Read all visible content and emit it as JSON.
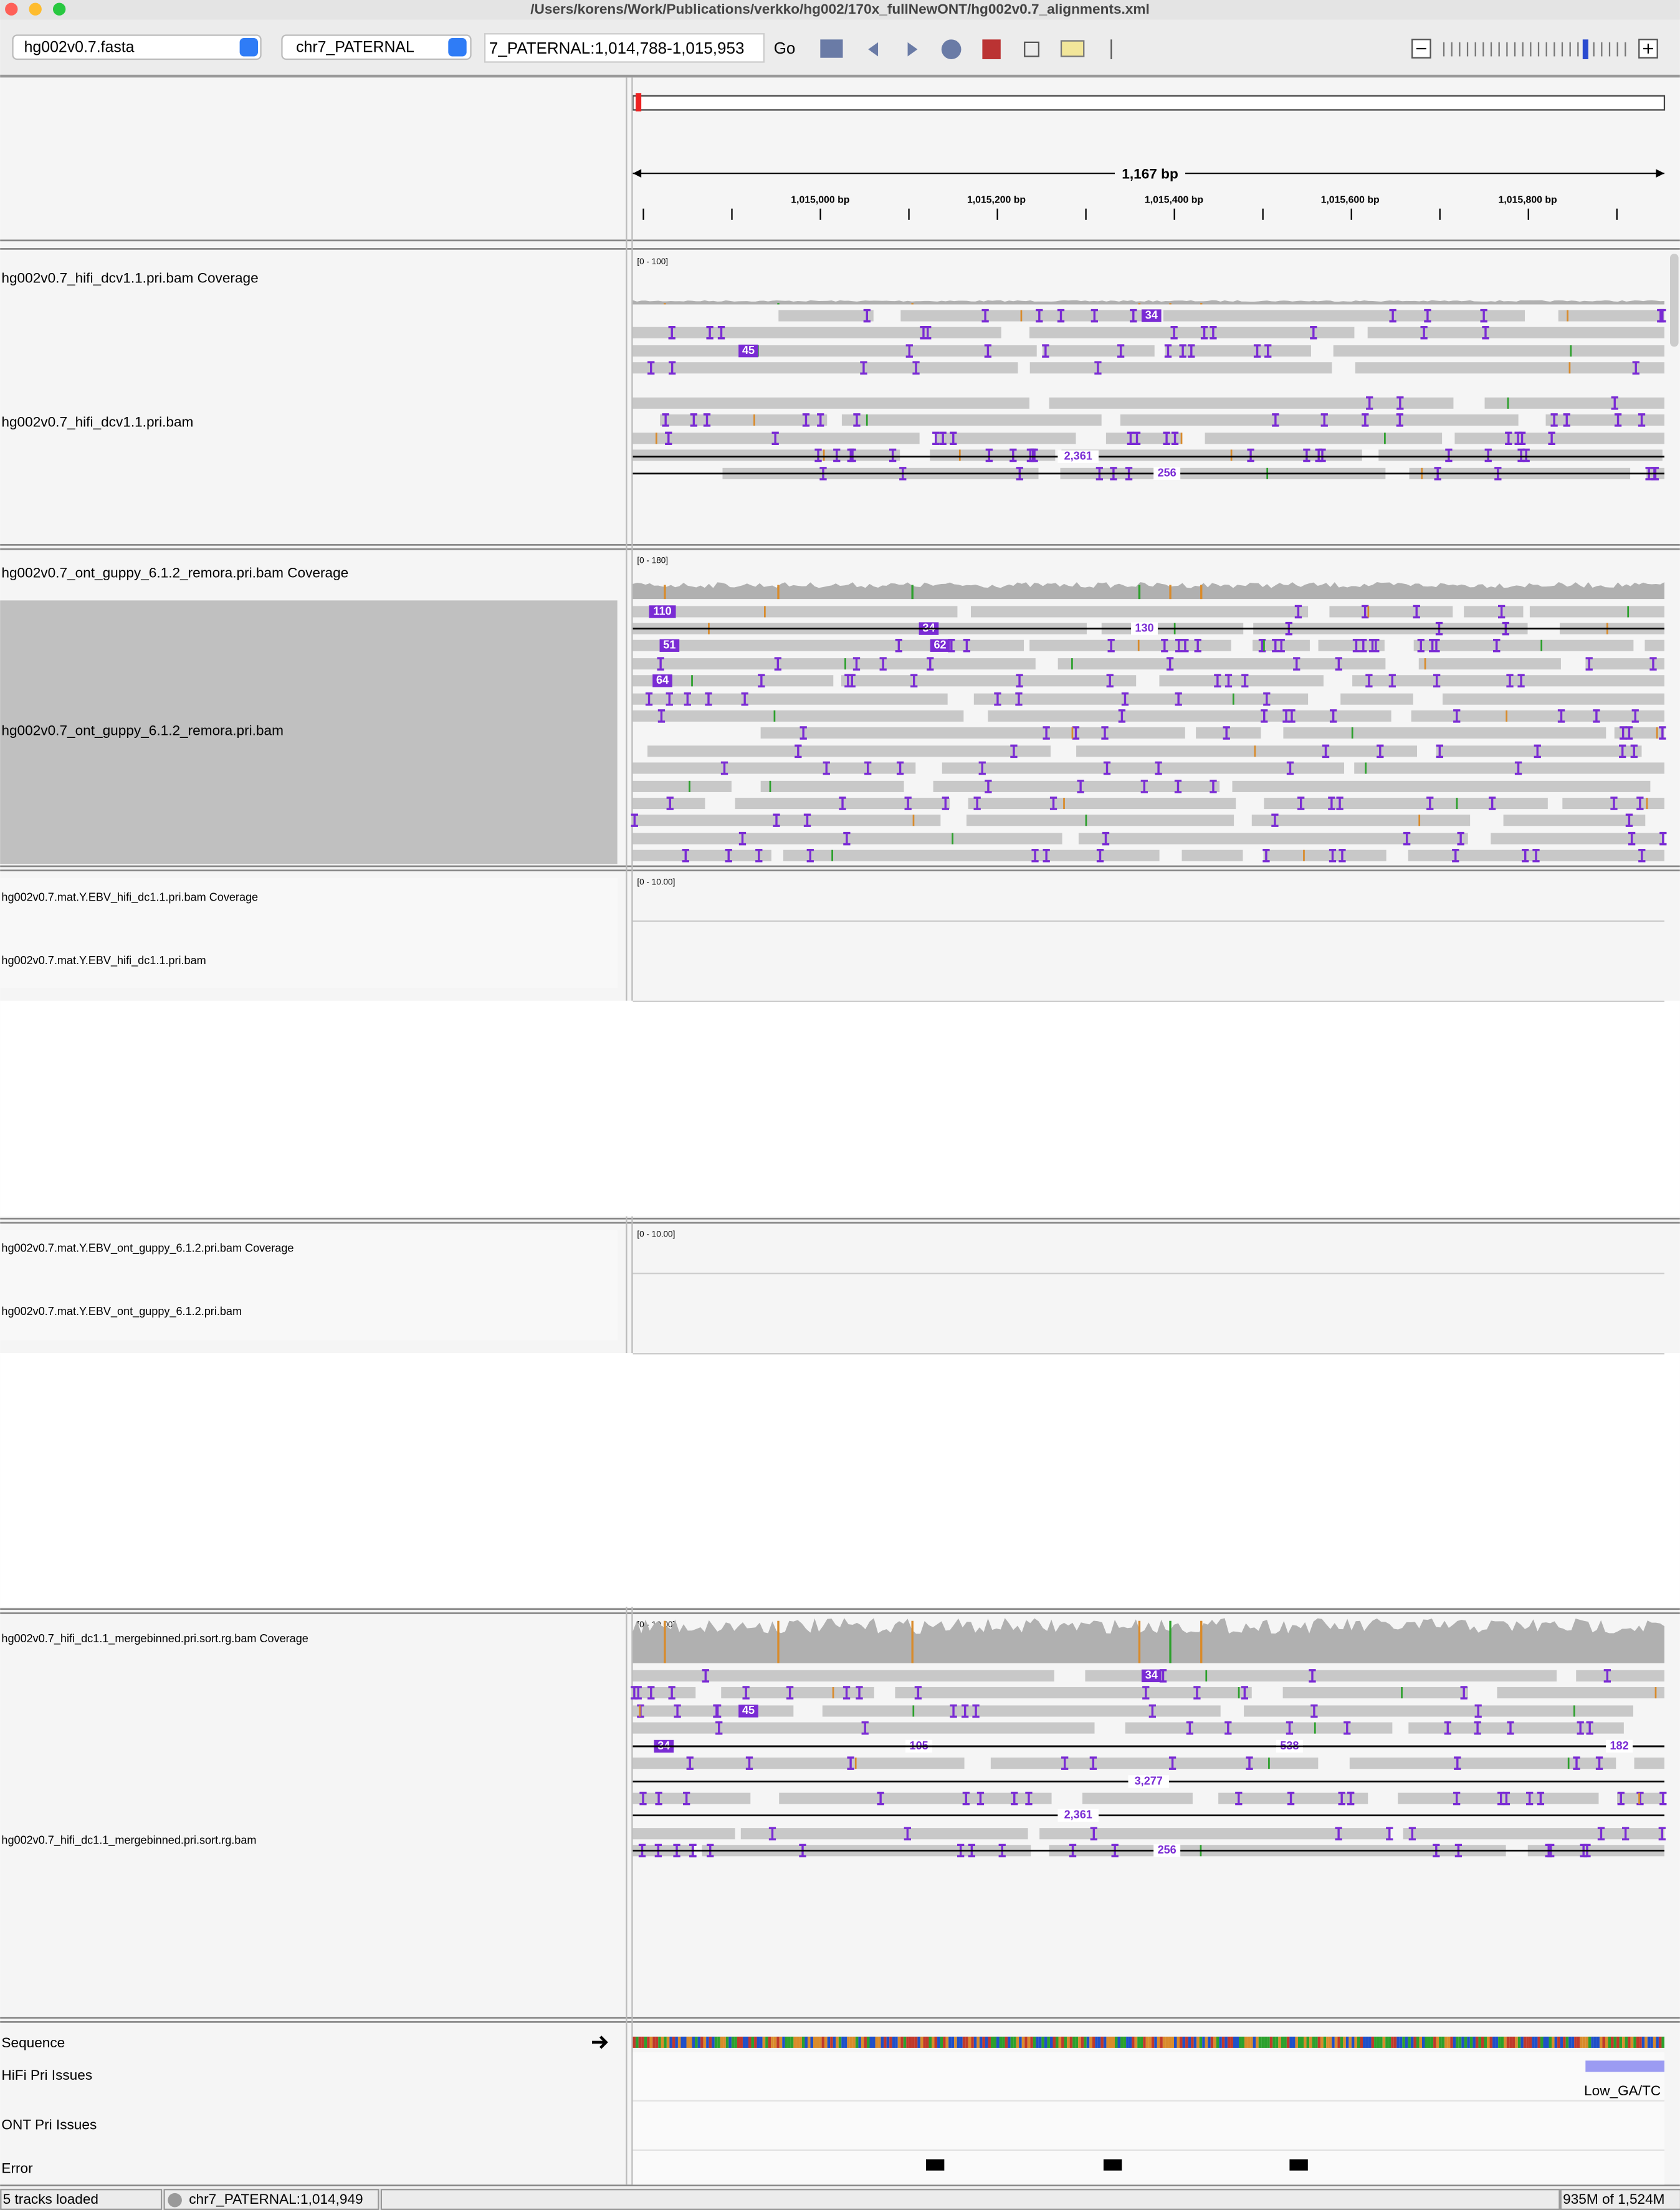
{
  "window": {
    "title": "/Users/korens/Work/Publications/verkko/hg002/170x_fullNewONT/hg002v0.7_alignments.xml"
  },
  "toolbar": {
    "genome": "hg002v0.7.fasta",
    "chromosome": "chr7_PATERNAL",
    "locus": "7_PATERNAL:1,014,788-1,015,953",
    "go": "Go"
  },
  "ruler": {
    "span": "1,167 bp",
    "ticks": [
      "1,015,000 bp",
      "1,015,200 bp",
      "1,015,400 bp",
      "1,015,600 bp",
      "1,015,800 bp"
    ]
  },
  "tracks": [
    {
      "coverage_name": "hg002v0.7_hifi_dcv1.1.pri.bam Coverage",
      "alignment_name": "hg002v0.7_hifi_dcv1.1.pri.bam",
      "range": "[0 - 100]",
      "labels": [
        "34",
        "45",
        "2,361",
        "256"
      ]
    },
    {
      "coverage_name": "hg002v0.7_ont_guppy_6.1.2_remora.pri.bam Coverage",
      "alignment_name": "hg002v0.7_ont_guppy_6.1.2_remora.pri.bam",
      "range": "[0 - 180]",
      "labels": [
        "110",
        "34",
        "130",
        "51",
        "62",
        "64"
      ]
    },
    {
      "coverage_name": "hg002v0.7.mat.Y.EBV_hifi_dc1.1.pri.bam Coverage",
      "alignment_name": "hg002v0.7.mat.Y.EBV_hifi_dc1.1.pri.bam",
      "range": "[0 - 10.00]"
    },
    {
      "coverage_name": "hg002v0.7.mat.Y.EBV_ont_guppy_6.1.2.pri.bam Coverage",
      "alignment_name": "hg002v0.7.mat.Y.EBV_ont_guppy_6.1.2.pri.bam",
      "range": "[0 - 10.00]"
    },
    {
      "coverage_name": "hg002v0.7_hifi_dc1.1_mergebinned.pri.sort.rg.bam Coverage",
      "alignment_name": "hg002v0.7_hifi_dc1.1_mergebinned.pri.sort.rg.bam",
      "range": "[0 - 10.00]",
      "labels": [
        "34",
        "45",
        "34",
        "105",
        "538",
        "182",
        "3,277",
        "2,361",
        "256"
      ]
    }
  ],
  "features": {
    "sequence": "Sequence",
    "hifi_issues": "HiFi Pri Issues",
    "hifi_feature": "Low_GA/TC",
    "ont_issues": "ONT Pri Issues",
    "error": "Error"
  },
  "status": {
    "tracks_loaded": "5 tracks loaded",
    "position": "chr7_PATERNAL:1,014,949",
    "memory": "935M of 1,524M"
  }
}
